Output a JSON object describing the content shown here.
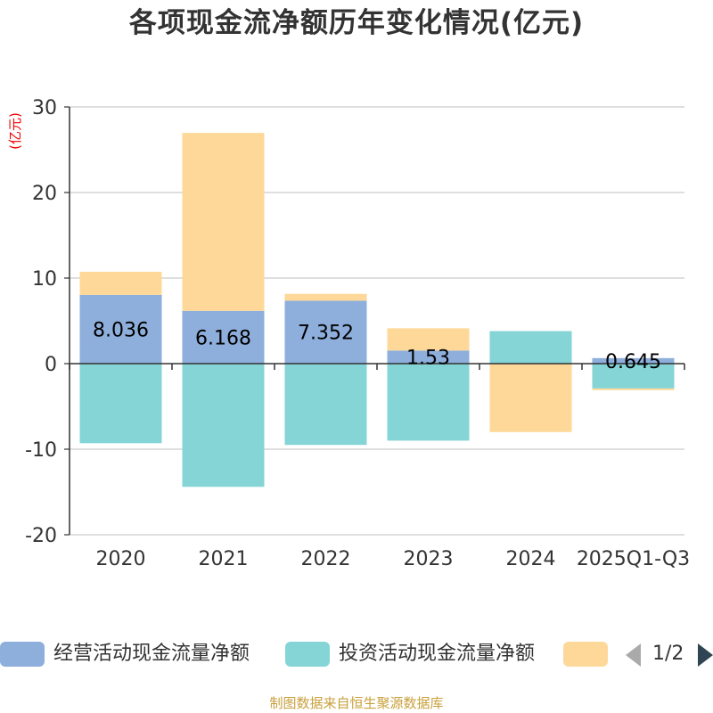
{
  "colors": {
    "operating": "#8eaedb",
    "investing": "#85d4d6",
    "financing": "#fdd899",
    "ylabel": "#ee0000",
    "source": "#c8a03c"
  },
  "chart_data": {
    "type": "bar",
    "stacked": true,
    "title": "各项现金流净额历年变化情况(亿元)",
    "ylabel": "(亿元)",
    "ylim": [
      -20,
      30
    ],
    "yticks": [
      30,
      20,
      10,
      0,
      -10,
      -20
    ],
    "ytick_labels": [
      "30",
      "20",
      "10",
      "0",
      "-10",
      "-20"
    ],
    "categories": [
      "2020",
      "2021",
      "2022",
      "2023",
      "2024",
      "2025Q1-Q3"
    ],
    "series": [
      {
        "name": "经营活动现金流量净额",
        "color_key": "operating",
        "values": [
          8.036,
          6.168,
          7.352,
          1.53,
          0.0,
          0.645
        ],
        "labels": [
          "8.036",
          "6.168",
          "7.352",
          "1.53",
          "",
          "0.645"
        ]
      },
      {
        "name": "投资活动现金流量净额",
        "color_key": "investing",
        "values": [
          -9.3,
          -14.4,
          -9.5,
          -9.0,
          3.8,
          -2.9
        ]
      },
      {
        "name": "",
        "color_key": "financing",
        "values": [
          2.7,
          20.8,
          0.8,
          2.6,
          -8.0,
          -0.2
        ]
      }
    ],
    "grid": true,
    "legend_position": "bottom"
  },
  "legend": {
    "page_text": "1/2"
  },
  "source_note": "制图数据来自恒生聚源数据库"
}
